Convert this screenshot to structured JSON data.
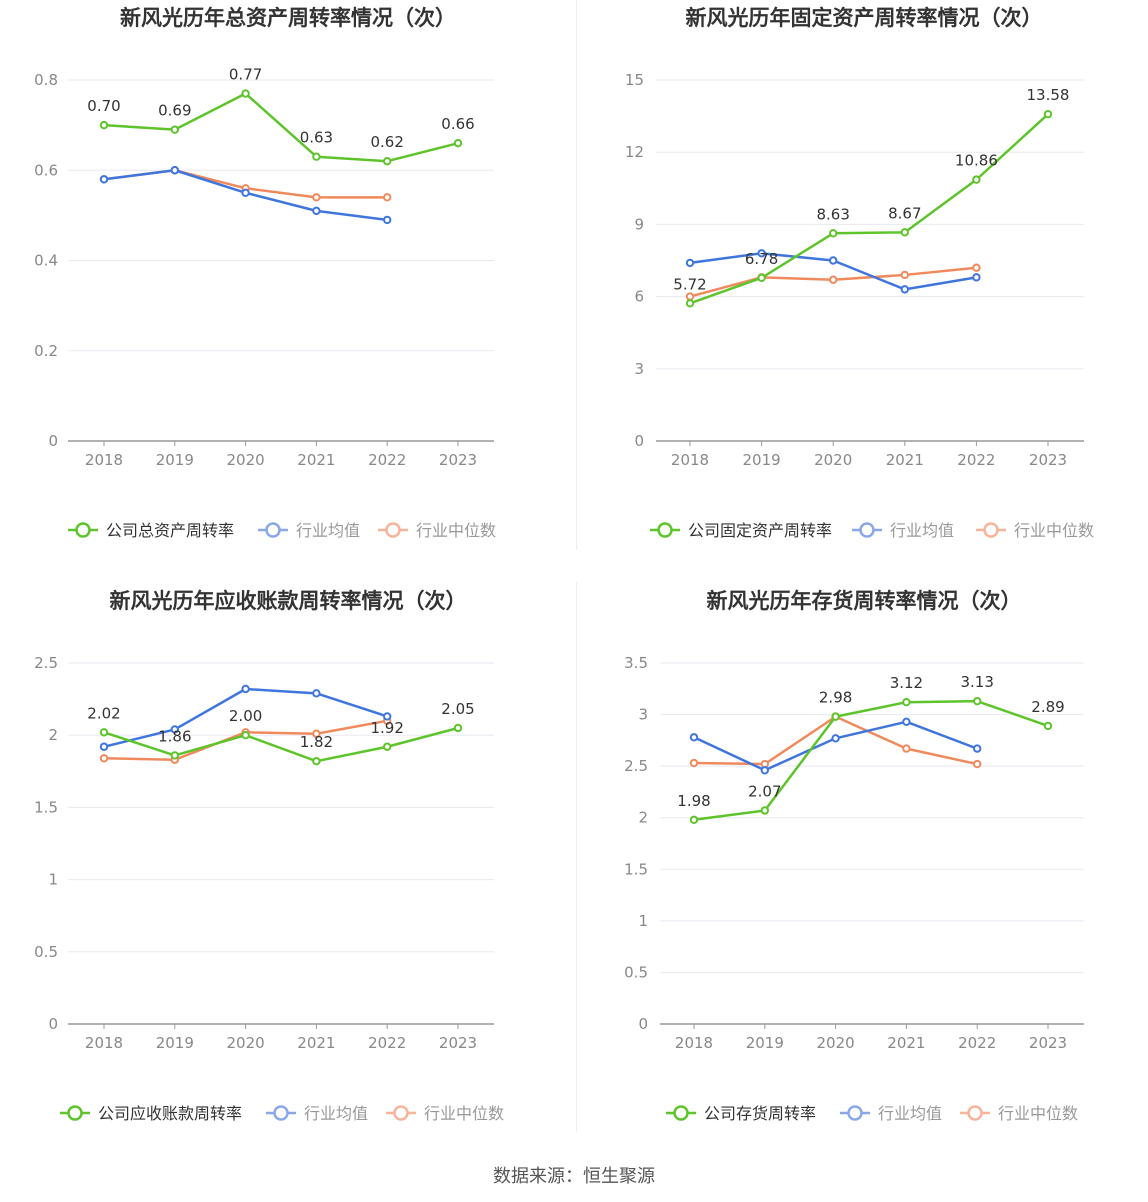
{
  "colors": {
    "company": "#5ec42b",
    "industry_avg": "#3f76dd",
    "industry_median": "#f08a5d",
    "legend_avg": "#8aa8e8",
    "legend_median": "#f7b49a"
  },
  "source": "数据来源：恒生聚源",
  "chart_data": [
    {
      "type": "line",
      "title": "新风光历年总资产周转率情况（次）",
      "categories": [
        "2018",
        "2019",
        "2020",
        "2021",
        "2022",
        "2023"
      ],
      "yticks": [
        "0",
        "0.2",
        "0.4",
        "0.6",
        "0.8"
      ],
      "ylim": [
        0,
        0.8
      ],
      "series": [
        {
          "name": "公司总资产周转率",
          "key": "company",
          "values": [
            0.7,
            0.69,
            0.77,
            0.63,
            0.62,
            0.66
          ],
          "labels": [
            "0.70",
            "0.69",
            "0.77",
            "0.63",
            "0.62",
            "0.66"
          ]
        },
        {
          "name": "行业均值",
          "key": "industry_avg",
          "values": [
            0.58,
            0.6,
            0.55,
            0.51,
            0.49,
            null
          ]
        },
        {
          "name": "行业中位数",
          "key": "industry_median",
          "values": [
            0.58,
            0.6,
            0.56,
            0.54,
            0.54,
            null
          ]
        }
      ]
    },
    {
      "type": "line",
      "title": "新风光历年固定资产周转率情况（次）",
      "categories": [
        "2018",
        "2019",
        "2020",
        "2021",
        "2022",
        "2023"
      ],
      "yticks": [
        "0",
        "3",
        "6",
        "9",
        "12",
        "15"
      ],
      "ylim": [
        0,
        15
      ],
      "series": [
        {
          "name": "公司固定资产周转率",
          "key": "company",
          "values": [
            5.72,
            6.78,
            8.63,
            8.67,
            10.86,
            13.58
          ],
          "labels": [
            "5.72",
            "6.78",
            "8.63",
            "8.67",
            "10.86",
            "13.58"
          ]
        },
        {
          "name": "行业均值",
          "key": "industry_avg",
          "values": [
            7.4,
            7.8,
            7.5,
            6.3,
            6.8,
            null
          ]
        },
        {
          "name": "行业中位数",
          "key": "industry_median",
          "values": [
            6.0,
            6.8,
            6.7,
            6.9,
            7.2,
            null
          ]
        }
      ]
    },
    {
      "type": "line",
      "title": "新风光历年应收账款周转率情况（次）",
      "categories": [
        "2018",
        "2019",
        "2020",
        "2021",
        "2022",
        "2023"
      ],
      "yticks": [
        "0",
        "0.5",
        "1",
        "1.5",
        "2",
        "2.5"
      ],
      "ylim": [
        0,
        2.5
      ],
      "series": [
        {
          "name": "公司应收账款周转率",
          "key": "company",
          "values": [
            2.02,
            1.86,
            2.0,
            1.82,
            1.92,
            2.05
          ],
          "labels": [
            "2.02",
            "1.86",
            "2.00",
            "1.82",
            "1.92",
            "2.05"
          ]
        },
        {
          "name": "行业均值",
          "key": "industry_avg",
          "values": [
            1.92,
            2.04,
            2.32,
            2.29,
            2.13,
            null
          ]
        },
        {
          "name": "行业中位数",
          "key": "industry_median",
          "values": [
            1.84,
            1.83,
            2.02,
            2.01,
            2.1,
            null
          ]
        }
      ]
    },
    {
      "type": "line",
      "title": "新风光历年存货周转率情况（次）",
      "categories": [
        "2018",
        "2019",
        "2020",
        "2021",
        "2022",
        "2023"
      ],
      "yticks": [
        "0",
        "0.5",
        "1",
        "1.5",
        "2",
        "2.5",
        "3",
        "3.5"
      ],
      "ylim": [
        0,
        3.5
      ],
      "series": [
        {
          "name": "公司存货周转率",
          "key": "company",
          "values": [
            1.98,
            2.07,
            2.98,
            3.12,
            3.13,
            2.89
          ],
          "labels": [
            "1.98",
            "2.07",
            "2.98",
            "3.12",
            "3.13",
            "2.89"
          ]
        },
        {
          "name": "行业均值",
          "key": "industry_avg",
          "values": [
            2.78,
            2.46,
            2.77,
            2.93,
            2.67,
            null
          ]
        },
        {
          "name": "行业中位数",
          "key": "industry_median",
          "values": [
            2.53,
            2.52,
            2.98,
            2.67,
            2.52,
            null
          ]
        }
      ]
    }
  ]
}
